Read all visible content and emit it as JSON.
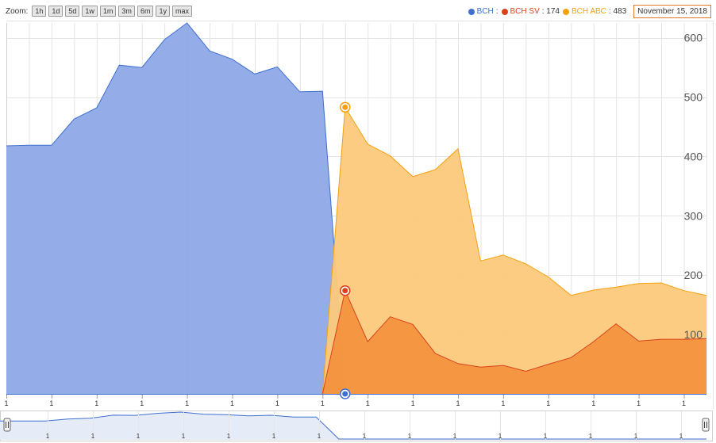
{
  "toolbar": {
    "zoom_label": "Zoom:",
    "zoom_buttons": [
      "1h",
      "1d",
      "5d",
      "1w",
      "1m",
      "3m",
      "6m",
      "1y",
      "max"
    ]
  },
  "legend": {
    "items": [
      {
        "name": "BCH",
        "value_text": ":",
        "color": "#3f6fd0"
      },
      {
        "name": "BCH SV",
        "value_text": ": 174",
        "color": "#d9421b"
      },
      {
        "name": "BCH ABC",
        "value_text": ": 483",
        "color": "#f5a00f"
      }
    ],
    "date": "November 15, 2018"
  },
  "chart_data": {
    "type": "area",
    "x": [
      0,
      1,
      2,
      3,
      4,
      5,
      6,
      7,
      8,
      9,
      10,
      11,
      12,
      13,
      14,
      15,
      16,
      17,
      18,
      19,
      20,
      21,
      22,
      23,
      24,
      25,
      26,
      27,
      28,
      29,
      30,
      31
    ],
    "x_tick_labels": [
      "1",
      "1",
      "1",
      "1",
      "1",
      "1",
      "1",
      "1",
      "1",
      "1",
      "1",
      "1",
      "1",
      "1",
      "1",
      "1"
    ],
    "y_ticks": [
      100,
      200,
      300,
      400,
      500,
      600
    ],
    "ylim": [
      0,
      625
    ],
    "series": [
      {
        "name": "BCH",
        "color": "#3f6fd0",
        "fill": "#8ea8e6",
        "points": [
          [
            0,
            418
          ],
          [
            1,
            419
          ],
          [
            2,
            419
          ],
          [
            3,
            463
          ],
          [
            4,
            482
          ],
          [
            5,
            554
          ],
          [
            6,
            550
          ],
          [
            7,
            597
          ],
          [
            8,
            625
          ],
          [
            9,
            578
          ],
          [
            10,
            564
          ],
          [
            11,
            539
          ],
          [
            12,
            551
          ],
          [
            13,
            509
          ],
          [
            14,
            510
          ],
          [
            15,
            0
          ]
        ]
      },
      {
        "name": "BCH ABC",
        "color": "#f5a00f",
        "fill": "#fcc97b",
        "points": [
          [
            14,
            0
          ],
          [
            15,
            483
          ],
          [
            16,
            421
          ],
          [
            17,
            401
          ],
          [
            18,
            366
          ],
          [
            19,
            378
          ],
          [
            20,
            413
          ],
          [
            21,
            224
          ],
          [
            22,
            234
          ],
          [
            23,
            219
          ],
          [
            24,
            197
          ],
          [
            25,
            166
          ],
          [
            26,
            175
          ],
          [
            27,
            180
          ],
          [
            28,
            186
          ],
          [
            29,
            187
          ],
          [
            30,
            174
          ],
          [
            31,
            166
          ]
        ]
      },
      {
        "name": "BCH SV",
        "color": "#d9421b",
        "fill": "#f3923e",
        "points": [
          [
            14,
            0
          ],
          [
            15,
            174
          ],
          [
            16,
            88
          ],
          [
            17,
            130
          ],
          [
            18,
            117
          ],
          [
            19,
            68
          ],
          [
            20,
            51
          ],
          [
            21,
            45
          ],
          [
            22,
            48
          ],
          [
            23,
            38
          ],
          [
            24,
            50
          ],
          [
            25,
            61
          ],
          [
            26,
            88
          ],
          [
            27,
            118
          ],
          [
            28,
            89
          ],
          [
            29,
            92
          ],
          [
            30,
            92
          ],
          [
            31,
            93
          ]
        ]
      }
    ],
    "markers": [
      {
        "series": "BCH ABC",
        "x": 15,
        "y": 483
      },
      {
        "series": "BCH SV",
        "x": 15,
        "y": 174
      },
      {
        "series": "BCH",
        "x": 15,
        "y": 0
      }
    ],
    "navigator": {
      "x_tick_labels": [
        "1",
        "1",
        "1",
        "1",
        "1",
        "1",
        "1",
        "1",
        "1",
        "1",
        "1",
        "1",
        "1",
        "1",
        "1",
        "1"
      ]
    }
  }
}
